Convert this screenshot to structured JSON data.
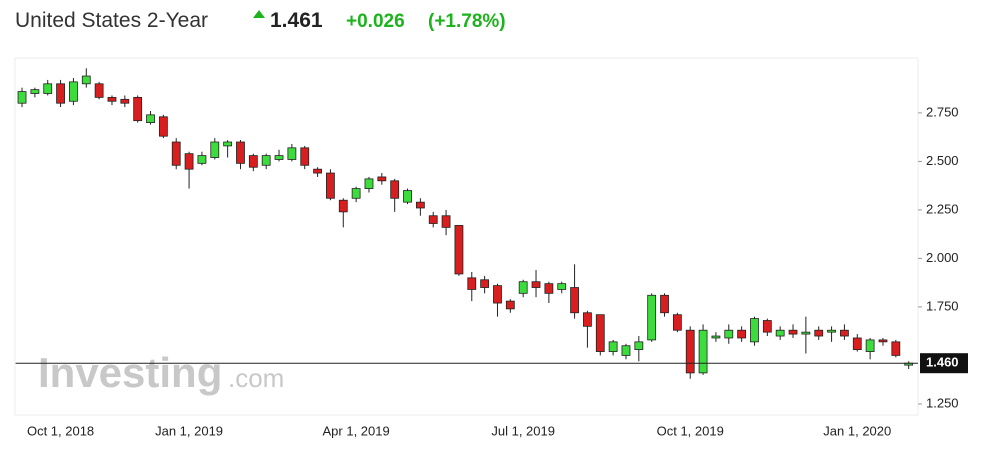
{
  "chart_data": {
    "type": "candlestick",
    "title": "United States 2-Year",
    "price": "1.461",
    "change": "+0.026",
    "change_pct": "(+1.78%)",
    "watermark": {
      "brand": "Investing",
      "suffix": ".com"
    },
    "categories": [
      null,
      null,
      null,
      "Oct 1, 2018",
      null,
      null,
      null,
      null,
      null,
      null,
      null,
      null,
      null,
      "Jan 1, 2019",
      null,
      null,
      null,
      null,
      null,
      null,
      null,
      null,
      null,
      null,
      null,
      null,
      "Apr 1, 2019",
      null,
      null,
      null,
      null,
      null,
      null,
      null,
      null,
      null,
      null,
      null,
      null,
      "Jul 1, 2019",
      null,
      null,
      null,
      null,
      null,
      null,
      null,
      null,
      null,
      null,
      null,
      null,
      "Oct 1, 2019",
      null,
      null,
      null,
      null,
      null,
      null,
      null,
      null,
      null,
      null,
      null,
      null,
      "Jan 1, 2020",
      null,
      null,
      null,
      null
    ],
    "open": [
      2.8,
      2.85,
      2.85,
      2.9,
      2.81,
      2.9,
      2.9,
      2.83,
      2.82,
      2.83,
      2.7,
      2.73,
      2.6,
      2.54,
      2.49,
      2.52,
      2.58,
      2.6,
      2.53,
      2.48,
      2.51,
      2.51,
      2.57,
      2.46,
      2.44,
      2.3,
      2.31,
      2.36,
      2.42,
      2.4,
      2.29,
      2.29,
      2.22,
      2.22,
      2.17,
      1.9,
      1.89,
      1.86,
      1.78,
      1.82,
      1.88,
      1.87,
      1.84,
      1.85,
      1.72,
      1.71,
      1.52,
      1.5,
      1.53,
      1.58,
      1.81,
      1.71,
      1.63,
      1.41,
      1.59,
      1.59,
      1.63,
      1.57,
      1.68,
      1.6,
      1.63,
      1.61,
      1.63,
      1.62,
      1.63,
      1.59,
      1.52,
      1.58,
      1.57,
      1.45
    ],
    "high": [
      2.88,
      2.88,
      2.92,
      2.92,
      2.93,
      2.98,
      2.91,
      2.84,
      2.84,
      2.84,
      2.76,
      2.74,
      2.62,
      2.55,
      2.55,
      2.62,
      2.61,
      2.61,
      2.54,
      2.54,
      2.56,
      2.59,
      2.58,
      2.47,
      2.46,
      2.31,
      2.37,
      2.42,
      2.44,
      2.41,
      2.36,
      2.31,
      2.24,
      2.25,
      2.17,
      1.93,
      1.91,
      1.87,
      1.79,
      1.89,
      1.94,
      1.88,
      1.88,
      1.97,
      1.73,
      1.71,
      1.58,
      1.56,
      1.6,
      1.82,
      1.82,
      1.72,
      1.65,
      1.66,
      1.62,
      1.66,
      1.65,
      1.7,
      1.69,
      1.65,
      1.66,
      1.7,
      1.65,
      1.65,
      1.66,
      1.61,
      1.59,
      1.59,
      1.58,
      1.47
    ],
    "low": [
      2.78,
      2.83,
      2.84,
      2.78,
      2.79,
      2.88,
      2.82,
      2.79,
      2.78,
      2.7,
      2.69,
      2.62,
      2.46,
      2.36,
      2.48,
      2.51,
      2.52,
      2.46,
      2.45,
      2.46,
      2.5,
      2.5,
      2.46,
      2.42,
      2.3,
      2.16,
      2.29,
      2.34,
      2.38,
      2.24,
      2.28,
      2.22,
      2.16,
      2.12,
      1.91,
      1.78,
      1.82,
      1.7,
      1.72,
      1.8,
      1.8,
      1.77,
      1.82,
      1.69,
      1.54,
      1.5,
      1.5,
      1.48,
      1.47,
      1.57,
      1.7,
      1.62,
      1.38,
      1.4,
      1.57,
      1.56,
      1.57,
      1.55,
      1.6,
      1.58,
      1.59,
      1.51,
      1.58,
      1.57,
      1.58,
      1.52,
      1.48,
      1.55,
      1.49,
      1.43
    ],
    "close": [
      2.86,
      2.87,
      2.9,
      2.8,
      2.91,
      2.94,
      2.83,
      2.81,
      2.8,
      2.71,
      2.74,
      2.63,
      2.48,
      2.46,
      2.53,
      2.6,
      2.6,
      2.49,
      2.47,
      2.53,
      2.53,
      2.57,
      2.48,
      2.44,
      2.31,
      2.24,
      2.36,
      2.41,
      2.4,
      2.31,
      2.35,
      2.26,
      2.18,
      2.16,
      1.92,
      1.84,
      1.85,
      1.77,
      1.74,
      1.88,
      1.85,
      1.82,
      1.87,
      1.72,
      1.65,
      1.52,
      1.57,
      1.55,
      1.57,
      1.81,
      1.72,
      1.63,
      1.41,
      1.63,
      1.6,
      1.63,
      1.59,
      1.69,
      1.62,
      1.63,
      1.61,
      1.62,
      1.6,
      1.63,
      1.6,
      1.53,
      1.58,
      1.57,
      1.5,
      1.46
    ],
    "up_color": "#3ddc3d",
    "down_color": "#d81e1e",
    "last": {
      "value": 1.46,
      "label": "1.460"
    },
    "ylim": [
      1.193,
      3.033
    ],
    "yticks": [
      {
        "value": 1.25,
        "label": "1.250"
      },
      {
        "value": 1.75,
        "label": "1.750"
      },
      {
        "value": 2.0,
        "label": "2.000"
      },
      {
        "value": 2.25,
        "label": "2.250"
      },
      {
        "value": 2.5,
        "label": "2.500"
      },
      {
        "value": 2.75,
        "label": "2.750"
      }
    ]
  }
}
